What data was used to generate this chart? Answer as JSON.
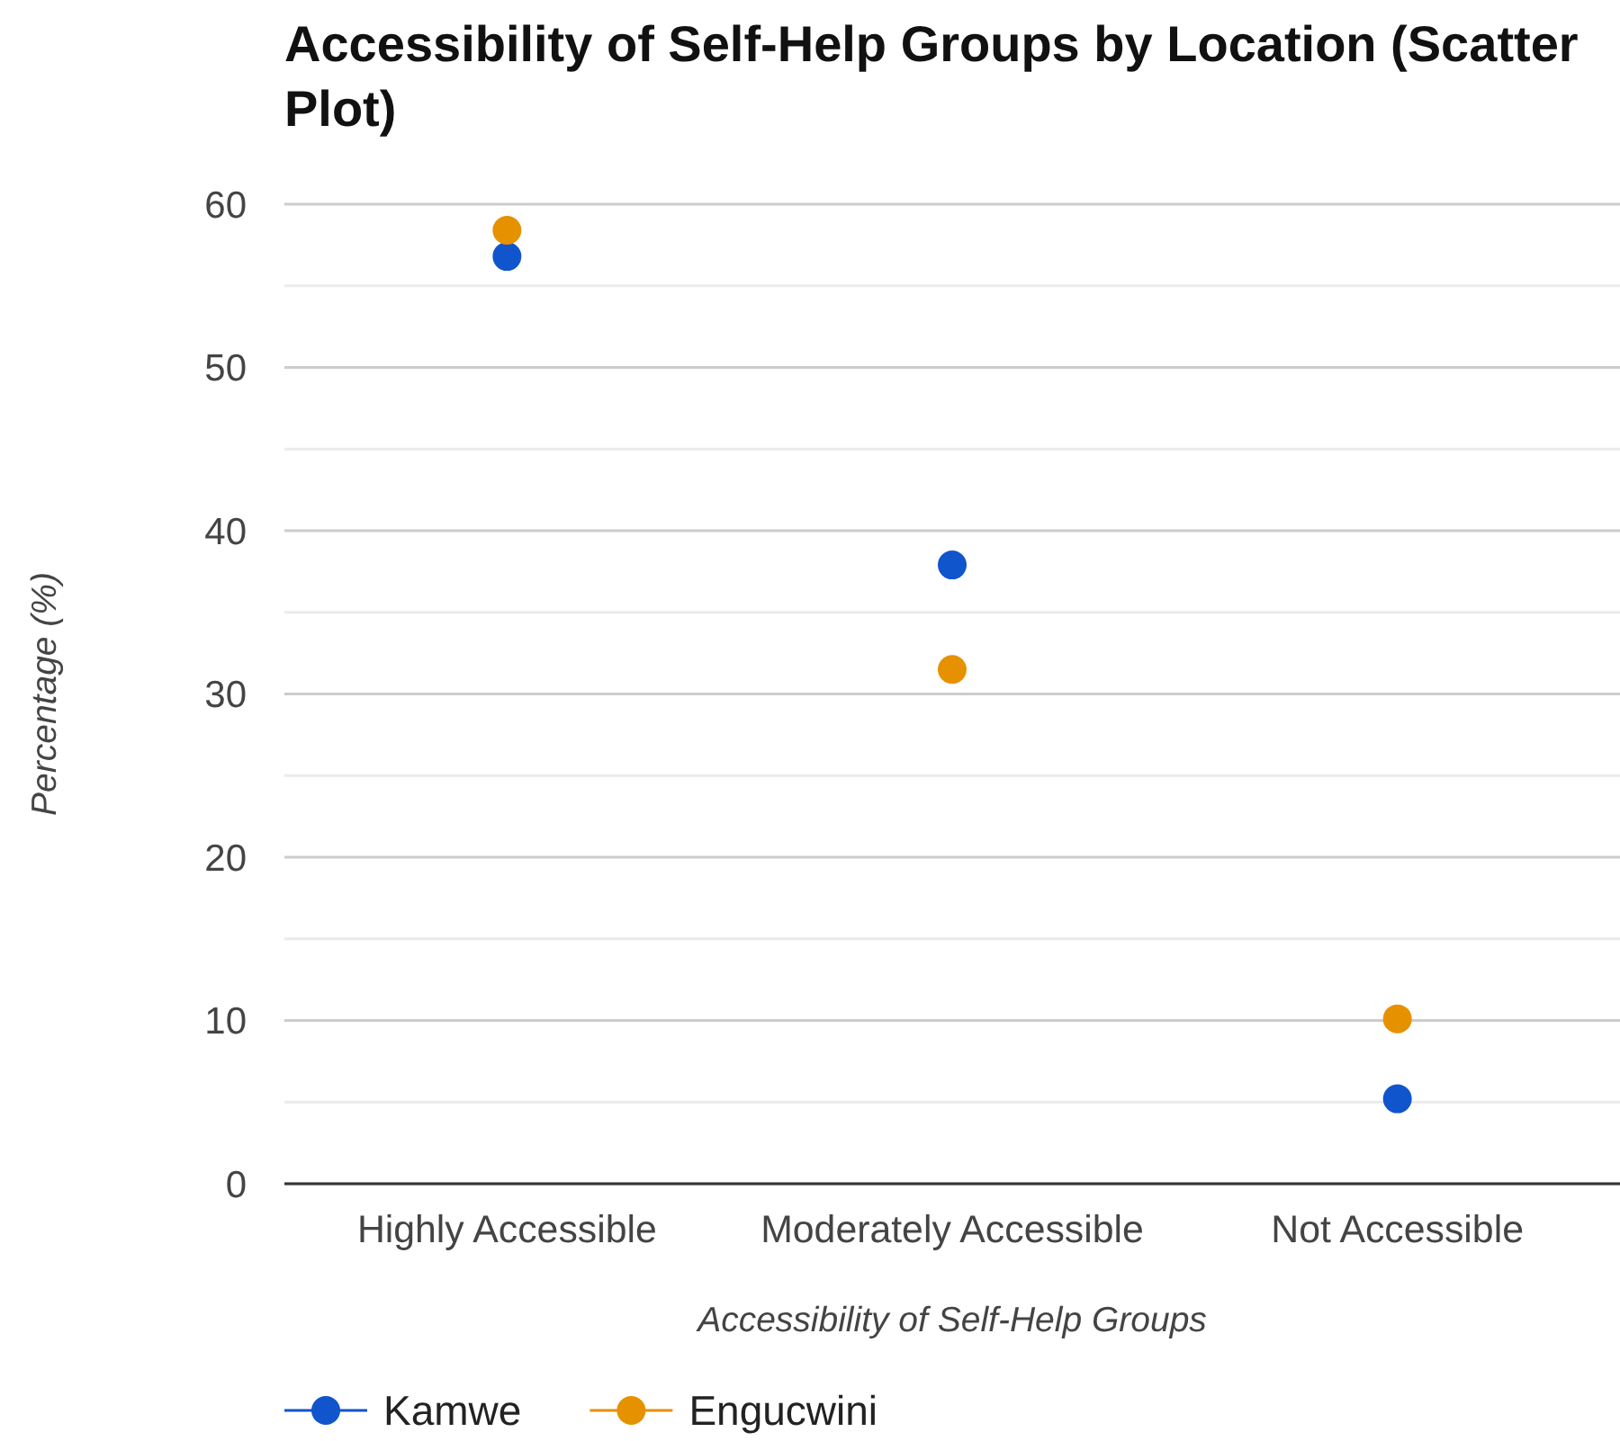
{
  "chart_data": {
    "type": "scatter",
    "title": "Accessibility of Self-Help Groups by Location (Scatter Plot)",
    "xlabel": "Accessibility of Self-Help Groups",
    "ylabel": "Percentage (%)",
    "categories": [
      "Highly Accessible",
      "Moderately Accessible",
      "Not Accessible"
    ],
    "series": [
      {
        "name": "Kamwe",
        "color": "#1155cc",
        "values": [
          56.8,
          37.9,
          5.2
        ]
      },
      {
        "name": "Engucwini",
        "color": "#e69100",
        "values": [
          58.4,
          31.5,
          10.1
        ]
      }
    ],
    "ylim": [
      0,
      60
    ],
    "yticks": [
      0,
      {
        "value": 5,
        "label": null
      },
      10,
      {
        "value": 15,
        "label": null
      },
      20,
      {
        "value": 25,
        "label": null
      },
      30,
      {
        "value": 35,
        "label": null
      },
      40,
      {
        "value": 45,
        "label": null
      },
      50,
      {
        "value": 55,
        "label": null
      },
      60
    ],
    "grid": true,
    "legend": "bottom",
    "marker": "circle"
  }
}
